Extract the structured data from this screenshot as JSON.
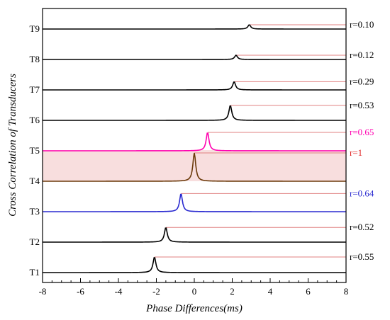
{
  "chart_data": {
    "type": "line",
    "xlabel": "Phase Differences(ms)",
    "ylabel": "Cross Correlation of Transducers",
    "xlim": [
      -8,
      8
    ],
    "x_ticks": [
      "-8",
      "-6",
      "-4",
      "-2",
      "0",
      "2",
      "4",
      "6",
      "8"
    ],
    "grid": false,
    "series": [
      {
        "name": "T1",
        "r_label": "r=0.55",
        "peak_x": -2.1,
        "peak_height": 0.55,
        "color": "#000000",
        "label_color": "#000000",
        "ref_color": "#e08080"
      },
      {
        "name": "T2",
        "r_label": "r=0.52",
        "peak_x": -1.5,
        "peak_height": 0.52,
        "color": "#000000",
        "label_color": "#000000",
        "ref_color": "#e08080"
      },
      {
        "name": "T3",
        "r_label": "r=0.64",
        "peak_x": -0.7,
        "peak_height": 0.64,
        "color": "#2a2ad0",
        "label_color": "#2a2ad0",
        "ref_color": "#e08080"
      },
      {
        "name": "T4",
        "r_label": "r=1",
        "peak_x": 0.0,
        "peak_height": 1.0,
        "color": "#6b3a0a",
        "label_color": "#e02020",
        "ref_color": "#e08080",
        "band_color": "#f8dede"
      },
      {
        "name": "T5",
        "r_label": "r=0.65",
        "peak_x": 0.7,
        "peak_height": 0.65,
        "color": "#ff00b0",
        "label_color": "#ff00b0",
        "ref_color": "#e08080"
      },
      {
        "name": "T6",
        "r_label": "r=0.53",
        "peak_x": 1.9,
        "peak_height": 0.53,
        "color": "#000000",
        "label_color": "#000000",
        "ref_color": "#e08080"
      },
      {
        "name": "T7",
        "r_label": "r=0.29",
        "peak_x": 2.1,
        "peak_height": 0.29,
        "color": "#000000",
        "label_color": "#000000",
        "ref_color": "#e08080"
      },
      {
        "name": "T8",
        "r_label": "r=0.12",
        "peak_x": 2.2,
        "peak_height": 0.12,
        "color": "#000000",
        "label_color": "#000000",
        "ref_color": "#e08080"
      },
      {
        "name": "T9",
        "r_label": "r=0.10",
        "peak_x": 2.9,
        "peak_height": 0.1,
        "color": "#000000",
        "label_color": "#000000",
        "ref_color": "#e08080"
      }
    ]
  }
}
